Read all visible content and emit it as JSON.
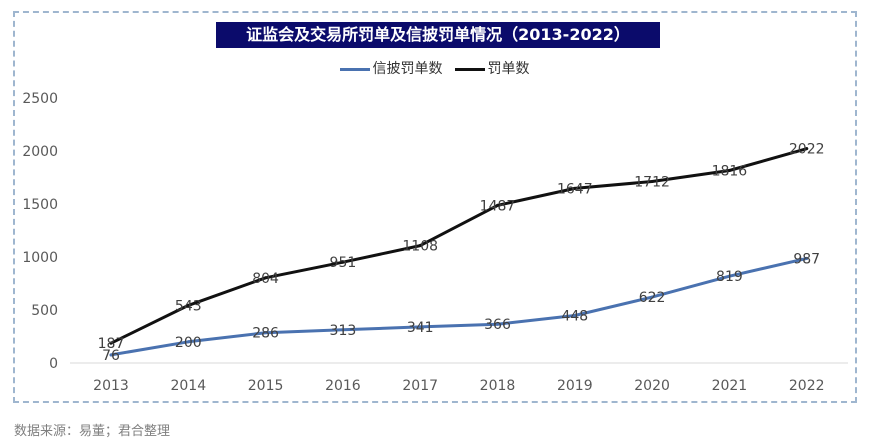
{
  "title": "证监会及交易所罚单及信披罚单情况（2013-2022）",
  "source": "数据来源：易董；君合整理",
  "chart_data": {
    "type": "line",
    "categories": [
      "2013",
      "2014",
      "2015",
      "2016",
      "2017",
      "2018",
      "2019",
      "2020",
      "2021",
      "2022"
    ],
    "series": [
      {
        "name": "信披罚单数",
        "color": "#4a72b0",
        "values": [
          76,
          200,
          286,
          313,
          341,
          366,
          448,
          622,
          819,
          987
        ]
      },
      {
        "name": "罚单数",
        "color": "#111111",
        "values": [
          187,
          543,
          804,
          951,
          1108,
          1487,
          1647,
          1712,
          1816,
          2022
        ]
      }
    ],
    "ylim": [
      0,
      2500
    ],
    "yticks": [
      0,
      500,
      1000,
      1500,
      2000,
      2500
    ],
    "legend_position": "top-center",
    "grid": false
  }
}
